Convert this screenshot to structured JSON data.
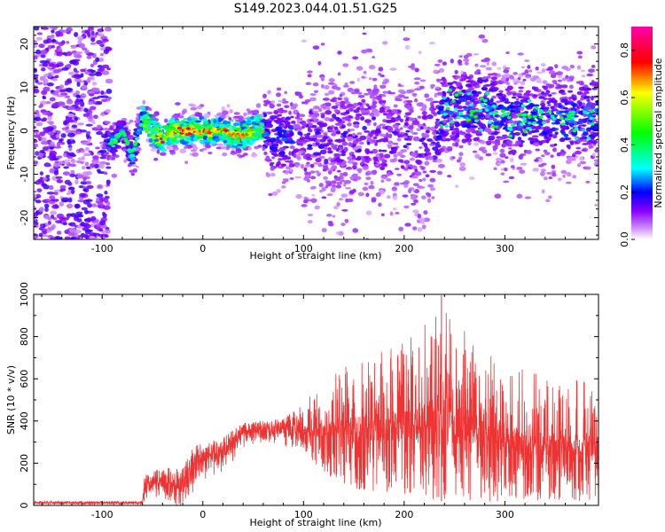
{
  "chart_data": [
    {
      "type": "heatmap",
      "title": "S149.2023.044.01.51.G25",
      "xlabel": "Height of straight line (km)",
      "ylabel": "Frequency (Hz)",
      "xlim": [
        -168,
        393
      ],
      "ylim": [
        -25,
        24
      ],
      "x_ticks": [
        -100,
        0,
        100,
        200,
        300
      ],
      "y_ticks": [
        -20,
        -10,
        0,
        10,
        20
      ],
      "colorbar": {
        "label": "Normalized spectral amplitude",
        "range": [
          0.0,
          0.9
        ],
        "ticks": [
          0.0,
          0.2,
          0.4,
          0.6,
          0.8
        ],
        "stops": [
          {
            "v": 0.0,
            "color": "#ffffff"
          },
          {
            "v": 0.05,
            "color": "#cc88ff"
          },
          {
            "v": 0.12,
            "color": "#8800ff"
          },
          {
            "v": 0.2,
            "color": "#0000ff"
          },
          {
            "v": 0.3,
            "color": "#00ffff"
          },
          {
            "v": 0.45,
            "color": "#00ff00"
          },
          {
            "v": 0.62,
            "color": "#ffff00"
          },
          {
            "v": 0.75,
            "color": "#ff0000"
          },
          {
            "v": 0.9,
            "color": "#ff00aa"
          }
        ]
      },
      "trace": [
        {
          "x": -90,
          "y": -3
        },
        {
          "x": -80,
          "y": 0
        },
        {
          "x": -70,
          "y": -6
        },
        {
          "x": -60,
          "y": 3
        },
        {
          "x": -50,
          "y": 0
        },
        {
          "x": -40,
          "y": -2
        },
        {
          "x": -30,
          "y": 0
        },
        {
          "x": -20,
          "y": 0
        },
        {
          "x": 0,
          "y": 0
        },
        {
          "x": 20,
          "y": 0
        },
        {
          "x": 40,
          "y": -1
        },
        {
          "x": 55,
          "y": 1
        },
        {
          "x": 70,
          "y": -2
        },
        {
          "x": 90,
          "y": -1
        },
        {
          "x": 120,
          "y": -2
        },
        {
          "x": 150,
          "y": -1
        },
        {
          "x": 180,
          "y": -1
        },
        {
          "x": 200,
          "y": -2
        },
        {
          "x": 225,
          "y": -4
        },
        {
          "x": 240,
          "y": 5
        },
        {
          "x": 260,
          "y": 5
        },
        {
          "x": 280,
          "y": 6
        },
        {
          "x": 300,
          "y": 2
        },
        {
          "x": 330,
          "y": 3
        },
        {
          "x": 360,
          "y": 2
        },
        {
          "x": 390,
          "y": 4
        }
      ]
    },
    {
      "type": "line",
      "xlabel": "Height of straight line (km)",
      "ylabel": "SNR (10 * v/v)",
      "xlim": [
        -168,
        393
      ],
      "ylim": [
        0,
        1000
      ],
      "x_ticks": [
        -100,
        0,
        100,
        200,
        300
      ],
      "y_ticks": [
        0,
        200,
        400,
        600,
        800,
        1000
      ],
      "color": "#ee3333",
      "envelope": [
        {
          "x": -168,
          "low": 5,
          "high": 20
        },
        {
          "x": -60,
          "low": 5,
          "high": 20
        },
        {
          "x": -58,
          "low": 30,
          "high": 140
        },
        {
          "x": -40,
          "low": 60,
          "high": 180
        },
        {
          "x": -20,
          "low": 0,
          "high": 170
        },
        {
          "x": -10,
          "low": 120,
          "high": 280
        },
        {
          "x": 20,
          "low": 200,
          "high": 320
        },
        {
          "x": 40,
          "low": 300,
          "high": 390
        },
        {
          "x": 80,
          "low": 310,
          "high": 410
        },
        {
          "x": 100,
          "low": 260,
          "high": 480
        },
        {
          "x": 120,
          "low": 150,
          "high": 600
        },
        {
          "x": 150,
          "low": 80,
          "high": 700
        },
        {
          "x": 200,
          "low": 40,
          "high": 780
        },
        {
          "x": 240,
          "low": 20,
          "high": 960
        },
        {
          "x": 280,
          "low": 20,
          "high": 720
        },
        {
          "x": 320,
          "low": 20,
          "high": 640
        },
        {
          "x": 360,
          "low": 20,
          "high": 600
        },
        {
          "x": 393,
          "low": 20,
          "high": 580
        }
      ]
    }
  ]
}
